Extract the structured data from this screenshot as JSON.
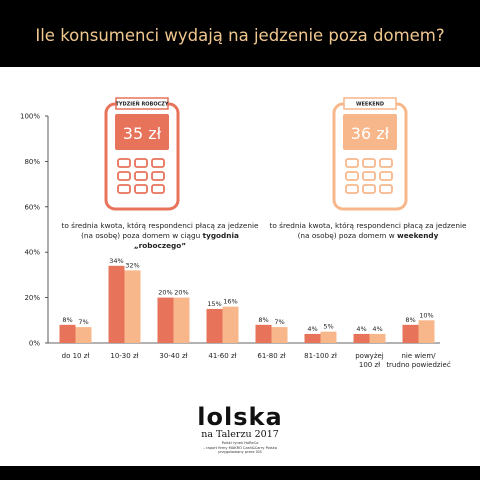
{
  "header": {
    "title": "Ile konsumenci wydają na jedzenie poza domem?"
  },
  "colors": {
    "background_band": "#000000",
    "title": "#f0c78f",
    "weekday": "#e8735b",
    "weekend": "#f7b78a"
  },
  "phones": {
    "weekday": {
      "label": "TYDZIEŃ ROBOCZY",
      "amount": "35 zł",
      "color": "#e8735b"
    },
    "weekend": {
      "label": "WEEKEND",
      "amount": "36 zł",
      "color": "#f7b78a"
    }
  },
  "notes": {
    "weekday": {
      "line1": "to średnia kwota, którą respondenci płacą za jedzenie",
      "line2_pre": "(na osobę) poza domem w ciągu ",
      "line2_bold": "tygodnia „roboczego”"
    },
    "weekend": {
      "line1": "to średnia kwota, którą respondenci płacą za jedzenie",
      "line2_pre": "(na osobę) poza domem w ",
      "line2_bold": "weekendy"
    }
  },
  "chart_data": {
    "type": "bar",
    "categories": [
      [
        "do 10 zł"
      ],
      [
        "10-30 zł"
      ],
      [
        "30-40 zł"
      ],
      [
        "41-60 zł"
      ],
      [
        "61-80 zł"
      ],
      [
        "81-100 zł"
      ],
      [
        "powyżej",
        "100 zł"
      ],
      [
        "nie wiem/",
        "trudno powiedzieć"
      ]
    ],
    "series": [
      {
        "values": [
          8,
          34,
          20,
          15,
          8,
          4,
          4,
          8
        ],
        "labels": [
          "8%",
          "34%",
          "20%",
          "15%",
          "8%",
          "4%",
          "4%",
          "8%"
        ],
        "color": "#e8735b"
      },
      {
        "values": [
          7,
          32,
          20,
          16,
          7,
          5,
          4,
          10
        ],
        "labels": [
          "7%",
          "32%",
          "20%",
          "16%",
          "7%",
          "5%",
          "4%",
          "10%"
        ],
        "color": "#f7b78a"
      }
    ],
    "yticks": [
      "0%",
      "20%",
      "40%",
      "60%",
      "80%",
      "100%"
    ],
    "ylim": [
      0,
      100
    ],
    "grid": false
  },
  "logo": {
    "main": "lolska",
    "sub": "na Talerzu 2017",
    "small1": "Polski rynek HoReCa",
    "small2": "– raport firmy MAKRO Cash&Carry Polska",
    "small3": "przygotowany przez IGS"
  }
}
